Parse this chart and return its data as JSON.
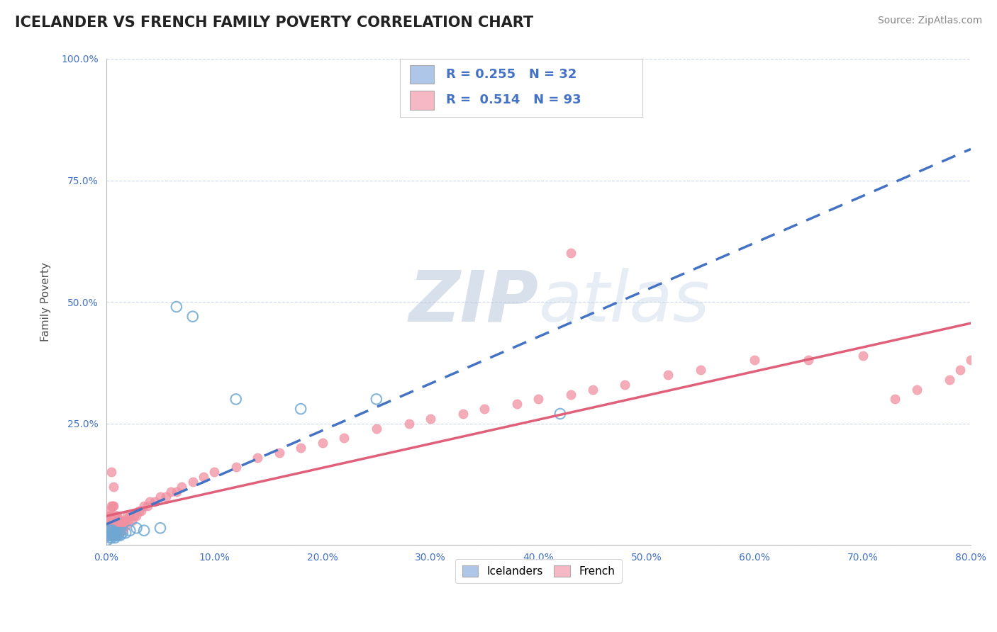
{
  "title": "ICELANDER VS FRENCH FAMILY POVERTY CORRELATION CHART",
  "source": "Source: ZipAtlas.com",
  "ylabel": "Family Poverty",
  "legend_icelander": {
    "R": 0.255,
    "N": 32,
    "color": "#aec6e8"
  },
  "legend_french": {
    "R": 0.514,
    "N": 93,
    "color": "#f5b8c4"
  },
  "icelander_color": "#6fa8d4",
  "french_color": "#f090a0",
  "background_color": "#ffffff",
  "grid_color": "#c8d4e8",
  "xlim": [
    0.0,
    0.8
  ],
  "ylim": [
    0.0,
    1.0
  ],
  "xticks": [
    0.0,
    0.1,
    0.2,
    0.3,
    0.4,
    0.5,
    0.6,
    0.7,
    0.8
  ],
  "yticks": [
    0.0,
    0.25,
    0.5,
    0.75,
    1.0
  ],
  "tick_color": "#4472c4",
  "icelander_x": [
    0.001,
    0.002,
    0.002,
    0.003,
    0.003,
    0.004,
    0.004,
    0.005,
    0.005,
    0.006,
    0.006,
    0.007,
    0.007,
    0.008,
    0.008,
    0.009,
    0.01,
    0.011,
    0.012,
    0.013,
    0.015,
    0.018,
    0.022,
    0.028,
    0.035,
    0.05,
    0.065,
    0.08,
    0.12,
    0.18,
    0.25,
    0.42
  ],
  "icelander_y": [
    0.01,
    0.02,
    0.03,
    0.015,
    0.025,
    0.02,
    0.03,
    0.015,
    0.025,
    0.02,
    0.03,
    0.02,
    0.025,
    0.015,
    0.025,
    0.02,
    0.025,
    0.02,
    0.025,
    0.02,
    0.025,
    0.025,
    0.03,
    0.035,
    0.03,
    0.035,
    0.49,
    0.47,
    0.3,
    0.28,
    0.3,
    0.27
  ],
  "french_x": [
    0.001,
    0.001,
    0.002,
    0.002,
    0.002,
    0.003,
    0.003,
    0.003,
    0.004,
    0.004,
    0.004,
    0.005,
    0.005,
    0.005,
    0.005,
    0.006,
    0.006,
    0.006,
    0.006,
    0.007,
    0.007,
    0.007,
    0.007,
    0.008,
    0.008,
    0.008,
    0.009,
    0.009,
    0.009,
    0.01,
    0.01,
    0.01,
    0.011,
    0.011,
    0.012,
    0.012,
    0.013,
    0.013,
    0.014,
    0.015,
    0.015,
    0.016,
    0.017,
    0.018,
    0.019,
    0.02,
    0.022,
    0.024,
    0.026,
    0.028,
    0.03,
    0.032,
    0.035,
    0.038,
    0.04,
    0.045,
    0.05,
    0.055,
    0.06,
    0.065,
    0.07,
    0.08,
    0.09,
    0.1,
    0.12,
    0.14,
    0.16,
    0.18,
    0.2,
    0.22,
    0.25,
    0.28,
    0.3,
    0.33,
    0.35,
    0.38,
    0.4,
    0.43,
    0.45,
    0.48,
    0.52,
    0.55,
    0.6,
    0.65,
    0.7,
    0.73,
    0.75,
    0.78,
    0.79,
    0.8,
    0.005,
    0.007,
    0.43
  ],
  "french_y": [
    0.02,
    0.04,
    0.03,
    0.05,
    0.07,
    0.02,
    0.04,
    0.06,
    0.02,
    0.04,
    0.06,
    0.02,
    0.04,
    0.06,
    0.08,
    0.02,
    0.04,
    0.06,
    0.08,
    0.02,
    0.04,
    0.06,
    0.08,
    0.02,
    0.04,
    0.06,
    0.02,
    0.04,
    0.06,
    0.02,
    0.04,
    0.06,
    0.03,
    0.05,
    0.03,
    0.05,
    0.03,
    0.05,
    0.04,
    0.03,
    0.05,
    0.04,
    0.05,
    0.04,
    0.06,
    0.05,
    0.06,
    0.05,
    0.06,
    0.06,
    0.07,
    0.07,
    0.08,
    0.08,
    0.09,
    0.09,
    0.1,
    0.1,
    0.11,
    0.11,
    0.12,
    0.13,
    0.14,
    0.15,
    0.16,
    0.18,
    0.19,
    0.2,
    0.21,
    0.22,
    0.24,
    0.25,
    0.26,
    0.27,
    0.28,
    0.29,
    0.3,
    0.31,
    0.32,
    0.33,
    0.35,
    0.36,
    0.38,
    0.38,
    0.39,
    0.3,
    0.32,
    0.34,
    0.36,
    0.38,
    0.15,
    0.12,
    0.6
  ]
}
